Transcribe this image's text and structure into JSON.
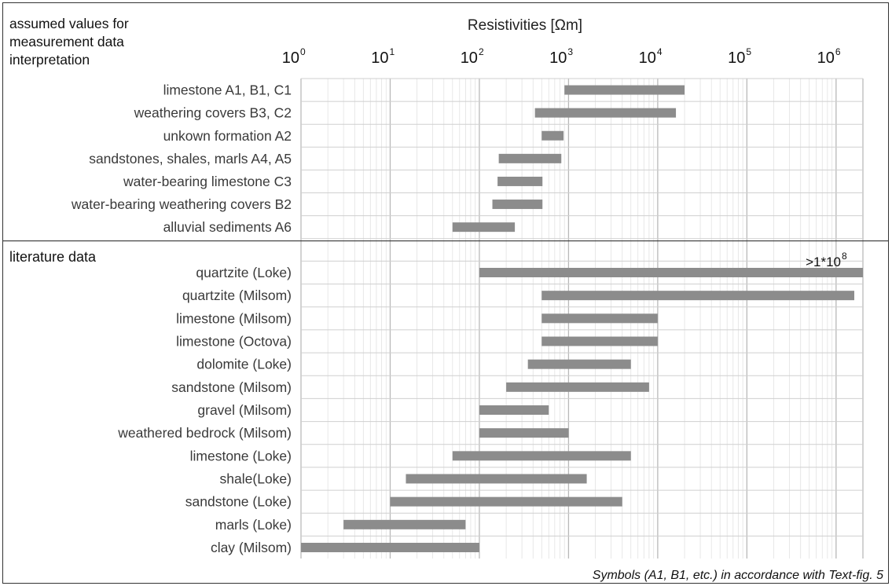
{
  "header": {
    "corner_lines": [
      "assumed values for",
      "measurement data",
      "interpretation"
    ]
  },
  "footer_note": "Symbols (A1, B1, etc.) in accordance with Text-fig. 5",
  "chart_data": {
    "type": "bar",
    "orientation": "horizontal-range",
    "title": "Resistivities [Ωm]",
    "xlabel": "Resistivities [Ωm]",
    "x_scale": "log",
    "xlim": [
      1,
      2000000
    ],
    "x_ticks": [
      {
        "base": "10",
        "exp": "0",
        "value": 1
      },
      {
        "base": "10",
        "exp": "1",
        "value": 10
      },
      {
        "base": "10",
        "exp": "2",
        "value": 100
      },
      {
        "base": "10",
        "exp": "3",
        "value": 1000
      },
      {
        "base": "10",
        "exp": "4",
        "value": 10000
      },
      {
        "base": "10",
        "exp": "5",
        "value": 100000
      },
      {
        "base": "10",
        "exp": "6",
        "value": 1000000
      }
    ],
    "grid": true,
    "bar_color": "#8c8c8c",
    "sections": [
      {
        "name": "assumed values for measurement data interpretation",
        "items": [
          {
            "label": "limestone A1, B1, C1",
            "min": 900,
            "max": 20000
          },
          {
            "label": "weathering covers B3, C2",
            "min": 420,
            "max": 16000
          },
          {
            "label": "unkown formation  A2",
            "min": 500,
            "max": 880
          },
          {
            "label": "sandstones, shales, marls A4, A5",
            "min": 165,
            "max": 830
          },
          {
            "label": "water-bearing limestone C3",
            "min": 160,
            "max": 510
          },
          {
            "label": "water-bearing weathering covers B2",
            "min": 140,
            "max": 510
          },
          {
            "label": "alluvial sediments A6",
            "min": 50,
            "max": 250
          }
        ]
      },
      {
        "name": "literature data",
        "items": [
          {
            "label": "quartzite (Loke)",
            "min": 100,
            "max": 2000000
          },
          {
            "label": "quartzite (Milsom)",
            "min": 500,
            "max": 1600000
          },
          {
            "label": "limestone (Milsom)",
            "min": 500,
            "max": 10000
          },
          {
            "label": "limestone (Octova)",
            "min": 500,
            "max": 10000
          },
          {
            "label": "dolomite (Loke)",
            "min": 350,
            "max": 5000
          },
          {
            "label": "sandstone (Milsom)",
            "min": 200,
            "max": 8000
          },
          {
            "label": "gravel (Milsom)",
            "min": 100,
            "max": 600
          },
          {
            "label": "weathered bedrock (Milsom)",
            "min": 100,
            "max": 1000
          },
          {
            "label": "limestone (Loke)",
            "min": 50,
            "max": 5000
          },
          {
            "label": "shale(Loke)",
            "min": 15,
            "max": 1600
          },
          {
            "label": "sandstone (Loke)",
            "min": 10,
            "max": 4000
          },
          {
            "label": "marls (Loke)",
            "min": 3,
            "max": 70
          },
          {
            "label": "clay (Milsom)",
            "min": 1,
            "max": 100
          }
        ]
      }
    ],
    "annotations": [
      {
        "for": "quartzite (Loke)",
        "base": ">1*10",
        "exp": "8"
      }
    ]
  }
}
